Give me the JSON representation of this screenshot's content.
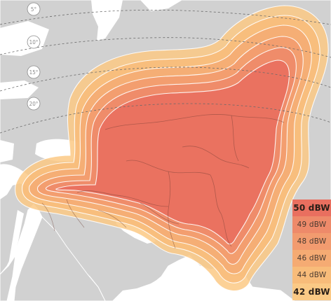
{
  "map": {
    "elevation_labels": [
      "5°",
      "10°",
      "15°",
      "20°"
    ]
  },
  "legend": [
    {
      "label": "50 dBW",
      "color": "#e96f5f",
      "bold": true
    },
    {
      "label": "49 dBW",
      "color": "#ee8a6a",
      "bold": false
    },
    {
      "label": "48 dBW",
      "color": "#f29b6f",
      "bold": false
    },
    {
      "label": "46 dBW",
      "color": "#f5ab73",
      "bold": false
    },
    {
      "label": "44 dBW",
      "color": "#f8bc7a",
      "bold": false
    },
    {
      "label": "42 dBW",
      "color": "#fbc985",
      "bold": true
    }
  ],
  "colors": {
    "land": "#d1d1d1",
    "sea": "#ffffff",
    "border": "#ffffff",
    "contour_line": "#ffffff",
    "elevation_line": "#6a6a6a"
  }
}
